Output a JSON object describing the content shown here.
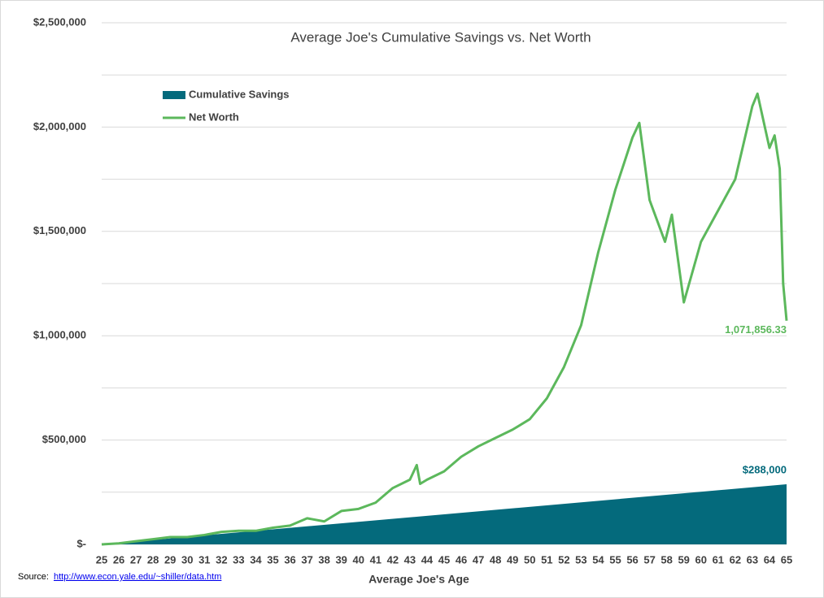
{
  "chart_data": {
    "type": "line",
    "title": "Average Joe's Cumulative Savings vs. Net Worth",
    "x_label": "Average Joe's Age",
    "source_label": "Source:",
    "source_url": "http://www.econ.yale.edu/~shiller/data.htm",
    "xlim": [
      25,
      65
    ],
    "xticks": [
      25,
      26,
      27,
      28,
      29,
      30,
      31,
      32,
      33,
      34,
      35,
      36,
      37,
      38,
      39,
      40,
      41,
      42,
      43,
      44,
      45,
      46,
      47,
      48,
      49,
      50,
      51,
      52,
      53,
      54,
      55,
      56,
      57,
      58,
      59,
      60,
      61,
      62,
      63,
      64,
      65
    ],
    "ylim": [
      0,
      2500000
    ],
    "yticks": [
      {
        "value": 0,
        "label": "$-"
      },
      {
        "value": 500000,
        "label": "$500,000"
      },
      {
        "value": 1000000,
        "label": "$1,000,000"
      },
      {
        "value": 1500000,
        "label": "$1,500,000"
      },
      {
        "value": 2000000,
        "label": "$2,000,000"
      },
      {
        "value": 2500000,
        "label": "$2,500,000"
      }
    ],
    "minor_yticks": [
      250000,
      750000,
      1250000,
      1750000,
      2250000
    ],
    "grid": true,
    "legend": "top-left",
    "series": [
      {
        "name": "Cumulative Savings",
        "kind": "area",
        "color": "#046a7c",
        "x": [
          25,
          65
        ],
        "values": [
          0,
          288000
        ],
        "value_labels": [
          null,
          "$288,000"
        ]
      },
      {
        "name": "Net Worth",
        "kind": "line",
        "color": "#5cb85c",
        "x": [
          25,
          26,
          27,
          28,
          29,
          30,
          31,
          32,
          33,
          34,
          35,
          36,
          37,
          38,
          39,
          40,
          41,
          42,
          43,
          43.4,
          43.6,
          44,
          45,
          46,
          47,
          48,
          49,
          50,
          51,
          52,
          53,
          54,
          55,
          56,
          56.4,
          57,
          57.9,
          58.3,
          59,
          60,
          61,
          62,
          63,
          63.3,
          64,
          64.3,
          64.6,
          64.8,
          65
        ],
        "values": [
          0,
          5000,
          15000,
          25000,
          35000,
          35000,
          45000,
          60000,
          65000,
          65000,
          80000,
          90000,
          125000,
          110000,
          160000,
          170000,
          200000,
          270000,
          310000,
          380000,
          290000,
          310000,
          350000,
          420000,
          470000,
          510000,
          550000,
          600000,
          700000,
          850000,
          1050000,
          1400000,
          1700000,
          1950000,
          2020000,
          1650000,
          1450000,
          1580000,
          1160000,
          1450000,
          1600000,
          1750000,
          2100000,
          2160000,
          1900000,
          1960000,
          1800000,
          1250000,
          1071856.33
        ],
        "value_labels": [
          null,
          null,
          null,
          null,
          null,
          null,
          null,
          null,
          null,
          null,
          null,
          null,
          null,
          null,
          null,
          null,
          null,
          null,
          null,
          null,
          null,
          null,
          null,
          null,
          null,
          null,
          null,
          null,
          null,
          null,
          null,
          null,
          null,
          null,
          null,
          null,
          null,
          null,
          null,
          null,
          null,
          null,
          null,
          null,
          null,
          null,
          null,
          null,
          "1,071,856.33"
        ]
      }
    ]
  }
}
